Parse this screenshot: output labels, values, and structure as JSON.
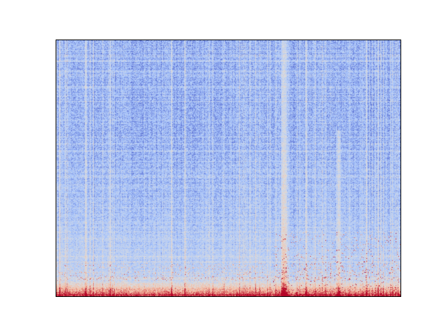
{
  "chart_data": {
    "type": "heatmap",
    "title": "",
    "xlabel": "",
    "ylabel": "",
    "colormap": "coolwarm",
    "colormap_stops": [
      "#3b4cc0",
      "#aac7fd",
      "#dddcdc",
      "#f7b89c",
      "#b40426"
    ],
    "value_range": [
      0,
      1
    ],
    "grid_size": {
      "rows": 369,
      "cols": 495
    },
    "description_values": {
      "background_mean": 0.22,
      "hot_column_fraction_of_width": 0.66,
      "second_warm_column_fraction_of_width": 0.82,
      "hot_bottom_band_fraction_of_height": 0.06
    },
    "ticks_visible": false,
    "grid": false,
    "legend": "none"
  }
}
